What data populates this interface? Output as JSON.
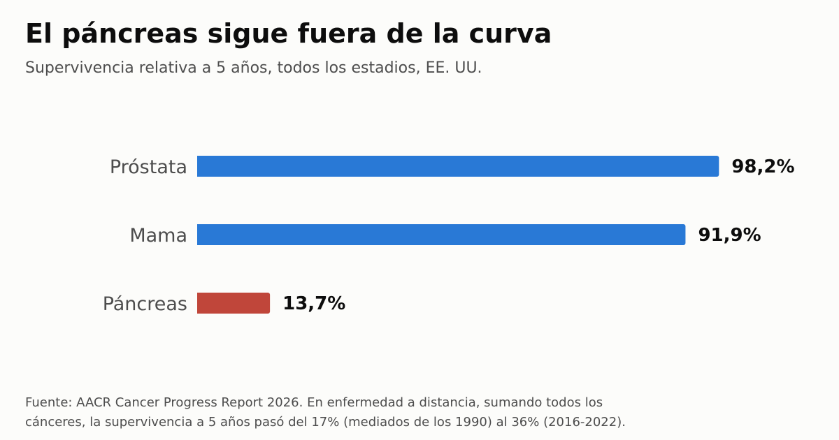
{
  "header": {
    "title": "El páncreas sigue fuera de la curva",
    "subtitle": "Supervivencia relativa a 5 años, todos los estadios, EE. UU."
  },
  "chart_data": {
    "type": "bar",
    "orientation": "horizontal",
    "categories": [
      "Próstata",
      "Mama",
      "Páncreas"
    ],
    "values": [
      98.2,
      91.9,
      13.7
    ],
    "value_labels": [
      "98,2%",
      "91,9%",
      "13,7%"
    ],
    "colors": [
      "#2979d6",
      "#2979d6",
      "#c0463a"
    ],
    "xlim": [
      0,
      100
    ],
    "grid": false,
    "legend": false
  },
  "footnote": {
    "line1": "Fuente: AACR Cancer Progress Report 2026. En enfermedad a distancia, sumando todos los",
    "line2": "cánceres, la supervivencia a 5 años pasó del 17% (mediados de los 1990) al 36% (2016-2022)."
  }
}
